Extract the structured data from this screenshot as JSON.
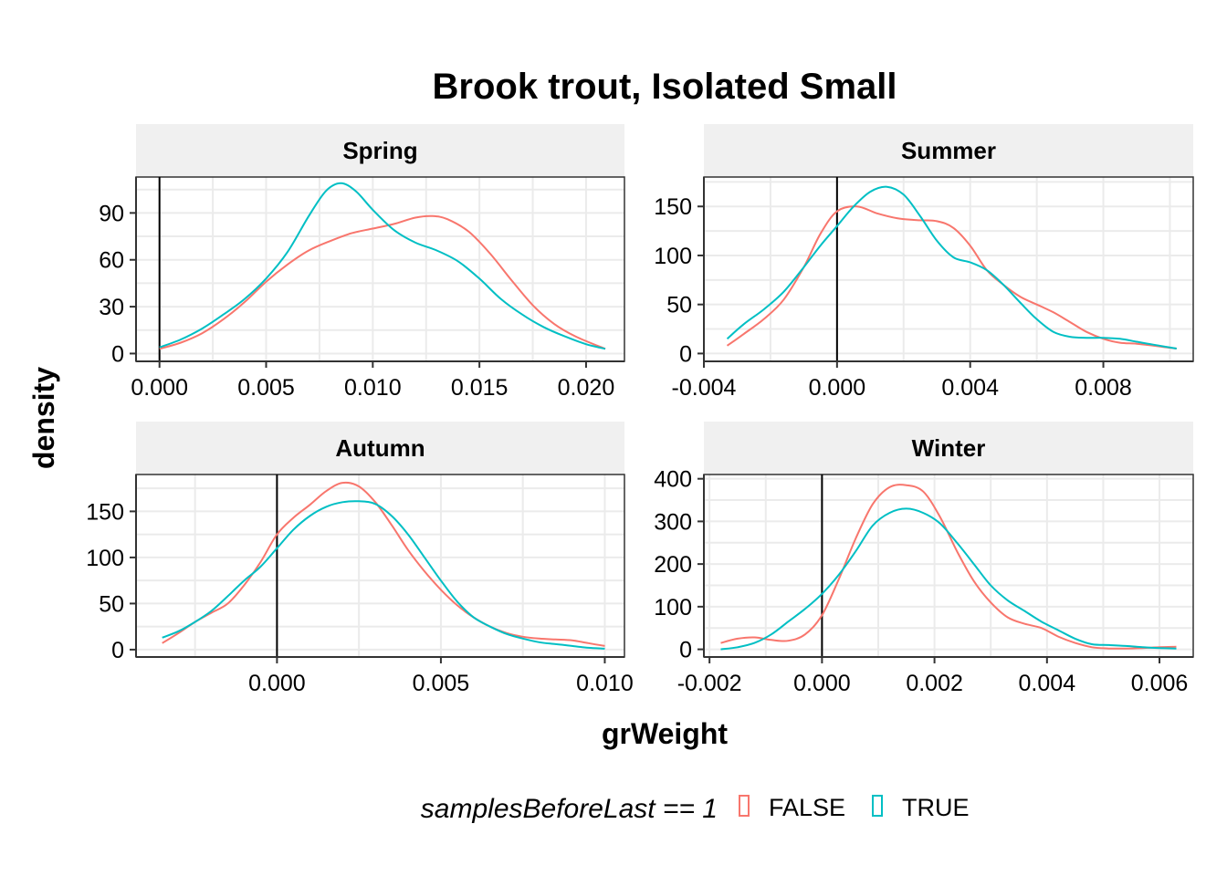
{
  "chart_data": {
    "type": "line",
    "title": "Brook trout, Isolated Small",
    "xlabel": "grWeight",
    "ylabel": "density",
    "legend": {
      "title": "samplesBeforeLast == 1",
      "placement": "bottom",
      "entries": [
        {
          "name": "FALSE",
          "color": "#F8766D"
        },
        {
          "name": "TRUE",
          "color": "#00BFC4"
        }
      ]
    },
    "vline_x": 0,
    "grid": true,
    "panels": [
      {
        "name": "Spring",
        "xlim": [
          -0.0011,
          0.0218
        ],
        "ylim": [
          -5,
          113
        ],
        "xticks": [
          0.0,
          0.005,
          0.01,
          0.015,
          0.02
        ],
        "xtick_labels": [
          "0.000",
          "0.005",
          "0.010",
          "0.015",
          "0.020"
        ],
        "yticks": [
          0,
          30,
          60,
          90
        ],
        "ytick_labels": [
          "0",
          "30",
          "60",
          "90"
        ],
        "series": [
          {
            "name": "FALSE",
            "x": [
              0.0,
              0.001,
              0.002,
              0.003,
              0.004,
              0.005,
              0.006,
              0.007,
              0.008,
              0.009,
              0.01,
              0.011,
              0.012,
              0.0128,
              0.0135,
              0.0145,
              0.0155,
              0.0165,
              0.0175,
              0.0185,
              0.0195,
              0.0209
            ],
            "y": [
              3,
              7,
              13,
              22,
              33,
              46,
              57,
              66,
              72,
              77,
              80,
              83,
              87,
              88,
              86,
              78,
              64,
              47,
              31,
              19,
              11,
              3
            ]
          },
          {
            "name": "TRUE",
            "x": [
              0.0,
              0.001,
              0.002,
              0.003,
              0.004,
              0.005,
              0.006,
              0.007,
              0.0078,
              0.0085,
              0.0092,
              0.01,
              0.011,
              0.012,
              0.013,
              0.014,
              0.015,
              0.016,
              0.017,
              0.018,
              0.019,
              0.02,
              0.0209
            ],
            "y": [
              4,
              9,
              16,
              25,
              35,
              48,
              65,
              88,
              104,
              109,
              104,
              92,
              79,
              71,
              66,
              59,
              48,
              35,
              25,
              17,
              11,
              6,
              3
            ]
          }
        ]
      },
      {
        "name": "Summer",
        "xlim": [
          -0.004,
          0.0107
        ],
        "ylim": [
          -8,
          180
        ],
        "xticks": [
          -0.004,
          0.0,
          0.004,
          0.008
        ],
        "xtick_labels": [
          "-0.004",
          "0.000",
          "0.004",
          "0.008"
        ],
        "yticks": [
          0,
          50,
          100,
          150
        ],
        "ytick_labels": [
          "0",
          "50",
          "100",
          "150"
        ],
        "series": [
          {
            "name": "FALSE",
            "x": [
              -0.0033,
              -0.0028,
              -0.0022,
              -0.0016,
              -0.001,
              -0.0005,
              0.0,
              0.0006,
              0.0012,
              0.0018,
              0.0024,
              0.003,
              0.0035,
              0.004,
              0.0045,
              0.005,
              0.0055,
              0.006,
              0.0065,
              0.007,
              0.0075,
              0.008,
              0.0085,
              0.009,
              0.0095,
              0.0102
            ],
            "y": [
              8,
              20,
              35,
              55,
              88,
              122,
              145,
              150,
              143,
              138,
              136,
              135,
              128,
              110,
              85,
              70,
              58,
              50,
              42,
              32,
              22,
              15,
              11,
              10,
              8,
              5
            ]
          },
          {
            "name": "TRUE",
            "x": [
              -0.0033,
              -0.0028,
              -0.0022,
              -0.0016,
              -0.001,
              -0.0005,
              0.0,
              0.0005,
              0.001,
              0.0015,
              0.002,
              0.0025,
              0.003,
              0.0035,
              0.004,
              0.0045,
              0.005,
              0.0055,
              0.006,
              0.0065,
              0.007,
              0.0075,
              0.008,
              0.0085,
              0.009,
              0.0095,
              0.0102
            ],
            "y": [
              15,
              30,
              45,
              63,
              88,
              110,
              130,
              150,
              165,
              170,
              162,
              140,
              115,
              98,
              93,
              85,
              70,
              52,
              35,
              22,
              17,
              16,
              16,
              15,
              12,
              9,
              5
            ]
          }
        ]
      },
      {
        "name": "Autumn",
        "xlim": [
          -0.0043,
          0.0106
        ],
        "ylim": [
          -8,
          190
        ],
        "xticks": [
          0.0,
          0.005,
          0.01
        ],
        "xtick_labels": [
          "0.000",
          "0.005",
          "0.010"
        ],
        "yticks": [
          0,
          50,
          100,
          150
        ],
        "ytick_labels": [
          "0",
          "50",
          "100",
          "150"
        ],
        "series": [
          {
            "name": "FALSE",
            "x": [
              -0.0035,
              -0.003,
              -0.0025,
              -0.002,
              -0.0015,
              -0.001,
              -0.0005,
              0.0,
              0.0005,
              0.001,
              0.0015,
              0.002,
              0.0025,
              0.003,
              0.0035,
              0.004,
              0.0045,
              0.005,
              0.0055,
              0.006,
              0.0065,
              0.007,
              0.0075,
              0.008,
              0.0085,
              0.009,
              0.0095,
              0.01
            ],
            "y": [
              7,
              18,
              30,
              40,
              50,
              70,
              95,
              125,
              143,
              157,
              172,
              181,
              177,
              160,
              135,
              108,
              85,
              65,
              48,
              35,
              25,
              18,
              14,
              12,
              11,
              10,
              7,
              4
            ]
          },
          {
            "name": "TRUE",
            "x": [
              -0.0035,
              -0.003,
              -0.0025,
              -0.002,
              -0.0015,
              -0.001,
              -0.0005,
              0.0,
              0.0005,
              0.001,
              0.0015,
              0.002,
              0.0025,
              0.003,
              0.0035,
              0.004,
              0.0045,
              0.005,
              0.0055,
              0.006,
              0.0065,
              0.007,
              0.0075,
              0.008,
              0.0085,
              0.009,
              0.0095,
              0.01
            ],
            "y": [
              13,
              20,
              30,
              42,
              58,
              75,
              90,
              110,
              130,
              145,
              155,
              160,
              161,
              158,
              145,
              125,
              100,
              75,
              52,
              35,
              25,
              17,
              12,
              8,
              6,
              4,
              2,
              1
            ]
          }
        ]
      },
      {
        "name": "Winter",
        "xlim": [
          -0.0021,
          0.0066
        ],
        "ylim": [
          -18,
          410
        ],
        "xticks": [
          -0.002,
          0.0,
          0.002,
          0.004,
          0.006
        ],
        "xtick_labels": [
          "-0.002",
          "0.000",
          "0.002",
          "0.004",
          "0.006"
        ],
        "yticks": [
          0,
          100,
          200,
          300,
          400
        ],
        "ytick_labels": [
          "0",
          "100",
          "200",
          "300",
          "400"
        ],
        "series": [
          {
            "name": "FALSE",
            "x": [
              -0.0018,
              -0.0015,
              -0.0012,
              -0.0009,
              -0.0006,
              -0.0003,
              0.0,
              0.0003,
              0.0006,
              0.0009,
              0.0012,
              0.0015,
              0.0018,
              0.0021,
              0.0024,
              0.0027,
              0.003,
              0.0033,
              0.0036,
              0.0039,
              0.0042,
              0.0045,
              0.0048,
              0.0051,
              0.0054,
              0.0057,
              0.006,
              0.0063
            ],
            "y": [
              15,
              25,
              28,
              22,
              20,
              35,
              80,
              165,
              260,
              340,
              380,
              385,
              370,
              310,
              230,
              160,
              110,
              75,
              60,
              50,
              30,
              15,
              5,
              2,
              2,
              3,
              5,
              6
            ]
          },
          {
            "name": "TRUE",
            "x": [
              -0.0018,
              -0.0015,
              -0.0012,
              -0.0009,
              -0.0006,
              -0.0003,
              0.0,
              0.0003,
              0.0006,
              0.0009,
              0.0012,
              0.0015,
              0.0018,
              0.0021,
              0.0024,
              0.0027,
              0.003,
              0.0033,
              0.0036,
              0.0039,
              0.0042,
              0.0045,
              0.0048,
              0.0051,
              0.0054,
              0.0057,
              0.006,
              0.0063
            ],
            "y": [
              0,
              5,
              15,
              35,
              65,
              95,
              130,
              175,
              230,
              290,
              320,
              330,
              320,
              295,
              250,
              200,
              150,
              115,
              90,
              65,
              45,
              25,
              12,
              10,
              8,
              5,
              3,
              2
            ]
          }
        ]
      }
    ]
  }
}
